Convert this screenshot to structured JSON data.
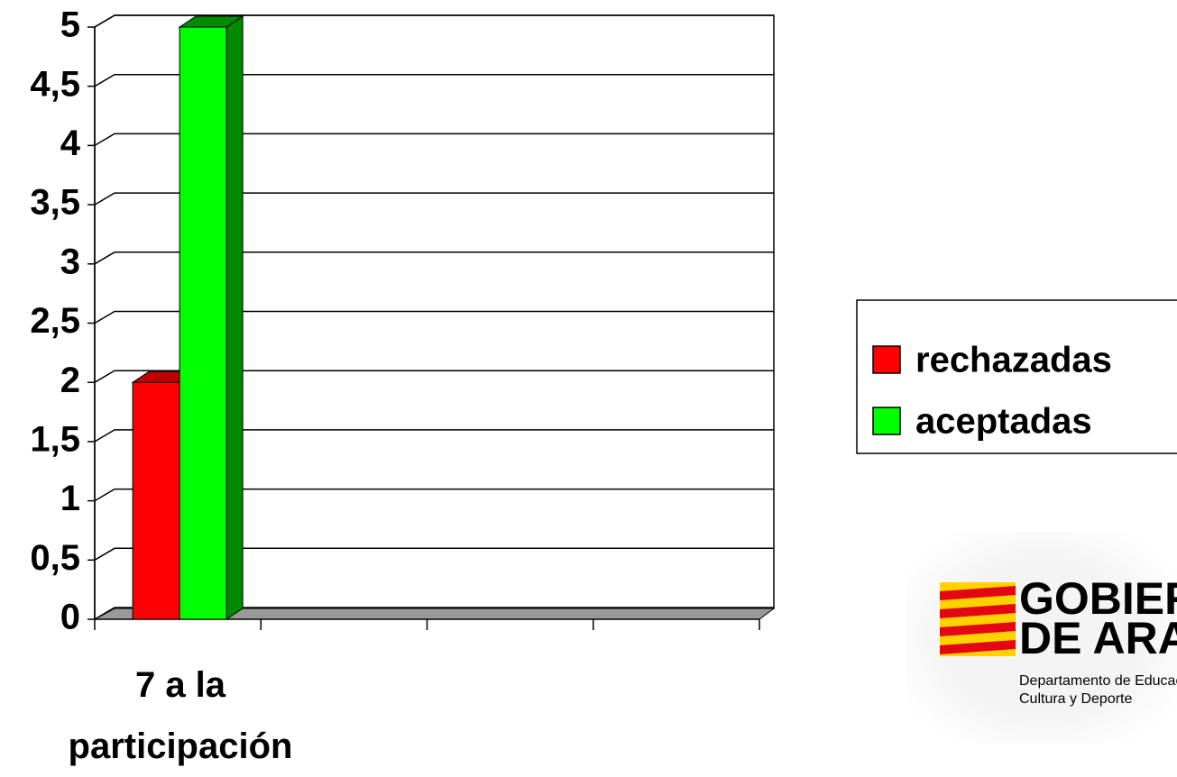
{
  "chart_data": {
    "type": "bar3d",
    "categories": [
      "7 a la participación",
      null,
      null,
      null
    ],
    "series": [
      {
        "name": "rechazadas",
        "color": "#ff0000",
        "side": "#c00000",
        "values": [
          2,
          null,
          null,
          null
        ]
      },
      {
        "name": "aceptadas",
        "color": "#00ff00",
        "side": "#008800",
        "values": [
          5,
          null,
          null,
          null
        ]
      }
    ],
    "ylim": [
      0,
      5
    ],
    "yticks": [
      0,
      {
        "value": 0.5,
        "label": "0,5"
      },
      1,
      {
        "value": 1.5,
        "label": "1,5"
      },
      2,
      {
        "value": 2.5,
        "label": "2,5"
      },
      3,
      {
        "value": 3.5,
        "label": "3,5"
      },
      4,
      {
        "value": 4.5,
        "label": "4,5"
      },
      5
    ],
    "grid": true,
    "legend": "right"
  },
  "logo": {
    "line1": "GOBIERNO",
    "line2": "DE ARAGÓN",
    "line3": "Departamento de Educación,",
    "line4": "Cultura y Deporte"
  }
}
